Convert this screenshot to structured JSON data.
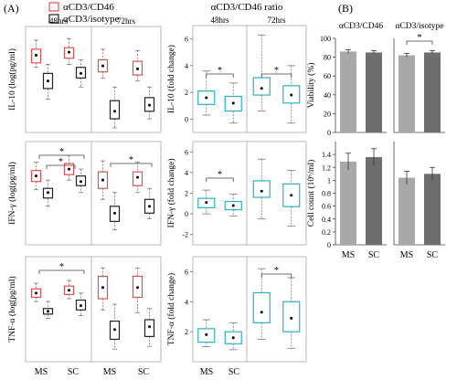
{
  "figure": {
    "panel_a_label": "(A)",
    "panel_b_label": "(B)",
    "legend": [
      {
        "label": "αCD3/CD46",
        "color": "#e05050"
      },
      {
        "label": "αCD3/isotype",
        "color": "#222222"
      }
    ],
    "ratio_title": "αCD3/CD46 ratio",
    "time_labels": [
      "48hrs",
      "72hrs"
    ],
    "x_labels": [
      "MS",
      "SC"
    ],
    "colors": {
      "cd46": "#e05050",
      "isotype": "#222222",
      "ratio": "#2ab3c4",
      "outlier": "#f0a030",
      "bar_ms": "#a8a8a8",
      "bar_sc": "#6e6e6e"
    }
  },
  "chart_data": [
    {
      "type": "box",
      "id": "il10_abs",
      "ylabel": "IL-10 (log(pg/ml)",
      "groups": [
        {
          "time": "48hrs",
          "categories": [
            "MS",
            "SC"
          ],
          "series": [
            {
              "name": "αCD3/CD46",
              "boxes": [
                {
                  "min": 7.3,
                  "q1": 7.6,
                  "median": 8.0,
                  "q3": 8.5,
                  "max": 9.1,
                  "mean": 8.1
                },
                {
                  "min": 7.5,
                  "q1": 7.9,
                  "median": 8.2,
                  "q3": 8.6,
                  "max": 9.2,
                  "mean": 8.3
                }
              ]
            },
            {
              "name": "αCD3/isotype",
              "boxes": [
                {
                  "min": 5.2,
                  "q1": 5.9,
                  "median": 6.3,
                  "q3": 6.9,
                  "max": 7.5,
                  "mean": 6.4
                },
                {
                  "min": 6.0,
                  "q1": 6.6,
                  "median": 6.9,
                  "q3": 7.3,
                  "max": 7.8,
                  "mean": 6.9
                }
              ]
            }
          ]
        },
        {
          "time": "72hrs",
          "categories": [
            "MS",
            "SC"
          ],
          "series": [
            {
              "name": "αCD3/CD46",
              "boxes": [
                {
                  "min": 6.6,
                  "q1": 7.0,
                  "median": 7.3,
                  "q3": 7.8,
                  "max": 8.5,
                  "mean": 7.4
                },
                {
                  "min": 6.4,
                  "q1": 6.8,
                  "median": 7.2,
                  "q3": 7.7,
                  "max": 8.4,
                  "mean": 7.2
                }
              ]
            },
            {
              "name": "αCD3/isotype",
              "boxes": [
                {
                  "min": 3.3,
                  "q1": 3.9,
                  "median": 4.3,
                  "q3": 5.1,
                  "max": 6.0,
                  "mean": 4.4
                },
                {
                  "min": 3.9,
                  "q1": 4.4,
                  "median": 4.7,
                  "q3": 5.3,
                  "max": 6.0,
                  "mean": 4.8
                }
              ]
            }
          ]
        }
      ]
    },
    {
      "type": "box",
      "id": "ifn_abs",
      "ylabel": "IFN-γ (log(pg/ml)",
      "significance": [
        {
          "time": "48hrs",
          "bars": [
            [
              "MS αCD3/CD46",
              "SC αCD3/isotype"
            ],
            [
              "MS αCD3/isotype",
              "SC αCD3/CD46"
            ]
          ],
          "label": "*"
        },
        {
          "time": "72hrs",
          "bars": [
            [
              "MS αCD3/isotype",
              "SC αCD3/isotype"
            ]
          ],
          "label": "*"
        }
      ],
      "groups": [
        {
          "time": "48hrs",
          "categories": [
            "MS",
            "SC"
          ],
          "series": [
            {
              "name": "αCD3/CD46",
              "boxes": [
                {
                  "min": 5.5,
                  "q1": 6.1,
                  "median": 6.5,
                  "q3": 6.9,
                  "max": 7.5,
                  "mean": 6.5
                },
                {
                  "min": 6.2,
                  "q1": 6.6,
                  "median": 7.0,
                  "q3": 7.4,
                  "max": 8.0,
                  "mean": 7.0
                }
              ]
            },
            {
              "name": "αCD3/isotype",
              "boxes": [
                {
                  "min": 4.3,
                  "q1": 4.9,
                  "median": 5.2,
                  "q3": 5.6,
                  "max": 6.2,
                  "mean": 5.3
                },
                {
                  "min": 5.3,
                  "q1": 5.8,
                  "median": 6.1,
                  "q3": 6.5,
                  "max": 7.0,
                  "mean": 6.1
                }
              ]
            }
          ]
        },
        {
          "time": "72hrs",
          "categories": [
            "MS",
            "SC"
          ],
          "series": [
            {
              "name": "αCD3/CD46",
              "boxes": [
                {
                  "min": 4.8,
                  "q1": 5.6,
                  "median": 6.1,
                  "q3": 6.8,
                  "max": 7.6,
                  "mean": 6.2
                },
                {
                  "min": 5.3,
                  "q1": 5.8,
                  "median": 6.3,
                  "q3": 6.8,
                  "max": 7.5,
                  "mean": 6.4
                }
              ]
            },
            {
              "name": "αCD3/isotype",
              "boxes": [
                {
                  "min": 2.6,
                  "q1": 3.2,
                  "median": 3.7,
                  "q3": 4.3,
                  "max": 5.3,
                  "mean": 3.8
                },
                {
                  "min": 3.4,
                  "q1": 3.8,
                  "median": 4.2,
                  "q3": 4.8,
                  "max": 5.6,
                  "mean": 4.3
                }
              ]
            }
          ]
        }
      ]
    },
    {
      "type": "box",
      "id": "tnf_abs",
      "ylabel": "TNF-α (log(pg/ml)",
      "significance": [
        {
          "time": "48hrs",
          "bars": [
            [
              "MS αCD3/CD46",
              "SC αCD3/isotype"
            ]
          ],
          "label": "*"
        }
      ],
      "groups": [
        {
          "time": "48hrs",
          "categories": [
            "MS",
            "SC"
          ],
          "series": [
            {
              "name": "αCD3/CD46",
              "boxes": [
                {
                  "min": 6.8,
                  "q1": 7.1,
                  "median": 7.4,
                  "q3": 7.7,
                  "max": 8.1,
                  "mean": 7.4
                },
                {
                  "min": 7.0,
                  "q1": 7.3,
                  "median": 7.6,
                  "q3": 7.9,
                  "max": 8.3,
                  "mean": 7.6
                }
              ]
            },
            {
              "name": "αCD3/isotype",
              "boxes": [
                {
                  "min": 5.6,
                  "q1": 5.9,
                  "median": 6.1,
                  "q3": 6.3,
                  "max": 6.8,
                  "mean": 6.1
                },
                {
                  "min": 5.8,
                  "q1": 6.2,
                  "median": 6.5,
                  "q3": 6.9,
                  "max": 7.4,
                  "mean": 6.5
                }
              ]
            }
          ]
        },
        {
          "time": "72hrs",
          "categories": [
            "MS",
            "SC"
          ],
          "series": [
            {
              "name": "αCD3/CD46",
              "boxes": [
                {
                  "min": 6.2,
                  "q1": 7.0,
                  "median": 7.8,
                  "q3": 8.6,
                  "max": 9.2,
                  "mean": 7.8
                },
                {
                  "min": 6.0,
                  "q1": 7.1,
                  "median": 7.8,
                  "q3": 8.6,
                  "max": 9.2,
                  "mean": 7.8
                }
              ]
            },
            {
              "name": "αCD3/isotype",
              "boxes": [
                {
                  "min": 3.4,
                  "q1": 4.1,
                  "median": 4.7,
                  "q3": 5.4,
                  "max": 6.6,
                  "mean": 4.8
                },
                {
                  "min": 3.6,
                  "q1": 4.3,
                  "median": 4.9,
                  "q3": 5.5,
                  "max": 6.3,
                  "mean": 5.0
                }
              ]
            }
          ]
        }
      ]
    },
    {
      "type": "box",
      "id": "il10_ratio",
      "ylabel": "IL-10 (fold change)",
      "ylim": [
        -1,
        7
      ],
      "yticks": [
        0,
        2,
        4,
        6
      ],
      "significance": [
        {
          "time": "48hrs",
          "label": "*"
        },
        {
          "time": "72hrs",
          "label": "*"
        }
      ],
      "groups": [
        {
          "time": "48hrs",
          "categories": [
            "MS",
            "SC"
          ],
          "boxes": [
            {
              "min": 0.3,
              "q1": 1.1,
              "median": 1.4,
              "q3": 2.1,
              "max": 3.6,
              "mean": 1.6
            },
            {
              "min": -0.3,
              "q1": 0.6,
              "median": 1.1,
              "q3": 1.7,
              "max": 2.7,
              "mean": 1.2
            }
          ]
        },
        {
          "time": "72hrs",
          "categories": [
            "MS",
            "SC"
          ],
          "boxes": [
            {
              "min": 0.6,
              "q1": 1.8,
              "median": 2.3,
              "q3": 3.1,
              "max": 6.3,
              "mean": 2.3
            },
            {
              "min": -0.3,
              "q1": 1.2,
              "median": 1.7,
              "q3": 2.5,
              "max": 4.0,
              "mean": 1.8
            }
          ]
        }
      ]
    },
    {
      "type": "box",
      "id": "ifn_ratio",
      "ylabel": "IFN-γ (fold change)",
      "ylim": [
        -3,
        7
      ],
      "yticks": [
        -2,
        0,
        2,
        4,
        6
      ],
      "significance": [
        {
          "time": "48hrs",
          "label": "*"
        }
      ],
      "groups": [
        {
          "time": "48hrs",
          "categories": [
            "MS",
            "SC"
          ],
          "boxes": [
            {
              "min": 0.0,
              "q1": 0.6,
              "median": 1.0,
              "q3": 1.5,
              "max": 2.3,
              "mean": 1.1
            },
            {
              "min": -0.2,
              "q1": 0.4,
              "median": 0.7,
              "q3": 1.2,
              "max": 1.9,
              "mean": 0.8
            }
          ]
        },
        {
          "time": "72hrs",
          "categories": [
            "MS",
            "SC"
          ],
          "boxes": [
            {
              "min": -0.5,
              "q1": 1.6,
              "median": 2.1,
              "q3": 3.2,
              "max": 5.3,
              "mean": 2.2
            },
            {
              "min": -1.2,
              "q1": 0.7,
              "median": 1.8,
              "q3": 2.9,
              "max": 4.2,
              "mean": 1.8
            }
          ]
        }
      ]
    },
    {
      "type": "box",
      "id": "tnf_ratio",
      "ylabel": "TNF-α (fold change)",
      "ylim": [
        0,
        7
      ],
      "yticks": [
        2,
        4,
        6
      ],
      "significance": [
        {
          "time": "72hrs",
          "label": "*"
        }
      ],
      "groups": [
        {
          "time": "48hrs",
          "categories": [
            "MS",
            "SC"
          ],
          "boxes": [
            {
              "min": 1.0,
              "q1": 1.3,
              "median": 1.8,
              "q3": 2.2,
              "max": 2.8,
              "mean": 1.8
            },
            {
              "min": 0.8,
              "q1": 1.2,
              "median": 1.6,
              "q3": 2.0,
              "max": 2.6,
              "mean": 1.6
            }
          ]
        },
        {
          "time": "72hrs",
          "categories": [
            "MS",
            "SC"
          ],
          "boxes": [
            {
              "min": 1.5,
              "q1": 2.6,
              "median": 3.3,
              "q3": 4.6,
              "max": 6.2,
              "mean": 3.3
            },
            {
              "min": 0.9,
              "q1": 2.0,
              "median": 2.8,
              "q3": 4.0,
              "max": 5.6,
              "mean": 2.9
            }
          ]
        }
      ]
    },
    {
      "type": "bar",
      "id": "viability",
      "title": "αCD3/CD46",
      "ylabel": "Viability (%)",
      "ylim": [
        0,
        100
      ],
      "yticks": [
        0,
        20,
        40,
        60,
        80,
        100
      ],
      "categories": [
        "MS",
        "SC"
      ],
      "values": [
        86,
        85
      ],
      "errors": [
        2,
        2
      ]
    },
    {
      "type": "bar",
      "id": "viability_iso",
      "title": "αCD3/isotype",
      "ylim": [
        0,
        100
      ],
      "categories": [
        "MS",
        "SC"
      ],
      "values": [
        82,
        85
      ],
      "errors": [
        2,
        2
      ],
      "significance": {
        "label": "*"
      }
    },
    {
      "type": "bar",
      "id": "cellcount",
      "ylabel": "Cell count (10⁶/ml)",
      "ylim": [
        0,
        1.6
      ],
      "yticks": [
        0,
        0.2,
        0.4,
        0.6,
        0.8,
        1.0,
        1.2,
        1.4
      ],
      "categories": [
        "MS",
        "SC"
      ],
      "values": [
        1.29,
        1.36
      ],
      "errors": [
        0.13,
        0.13
      ]
    },
    {
      "type": "bar",
      "id": "cellcount_iso",
      "ylim": [
        0,
        1.6
      ],
      "categories": [
        "MS",
        "SC"
      ],
      "values": [
        1.04,
        1.1
      ],
      "errors": [
        0.1,
        0.1
      ]
    }
  ]
}
